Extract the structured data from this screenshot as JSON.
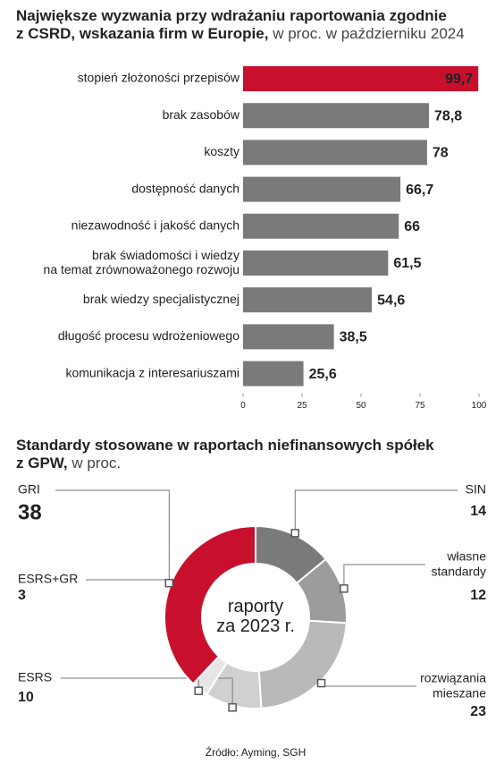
{
  "chart_data": [
    {
      "type": "bar",
      "title": "Największe wyzwania przy wdrażaniu raportowania zgodnie\nz CSRD, wskazania firm w Europie,",
      "subtitle": "w proc. w październiku 2024",
      "categories": [
        "stopień złożoności przepisów",
        "brak zasobów",
        "koszty",
        "dostępność danych",
        "niezawodność i jakość danych",
        "brak świadomości i wiedzy\nna temat zrównoważonego rozwoju",
        "brak wiedzy specjalistycznej",
        "długość procesu wdrożeniowego",
        "komunikacja z interesariuszami"
      ],
      "values": [
        99.7,
        78.8,
        78,
        66.7,
        66,
        61.5,
        54.6,
        38.5,
        25.6
      ],
      "value_labels": [
        "99,7",
        "78,8",
        "78",
        "66,7",
        "66",
        "61,5",
        "54,6",
        "38,5",
        "25,6"
      ],
      "colors": [
        "#c8102e",
        "#7a7a7a",
        "#7a7a7a",
        "#7a7a7a",
        "#7a7a7a",
        "#7a7a7a",
        "#7a7a7a",
        "#7a7a7a",
        "#7a7a7a"
      ],
      "xlim": [
        0,
        100
      ],
      "xticks": [
        0,
        25,
        50,
        75,
        100
      ]
    },
    {
      "type": "pie",
      "title": "Standardy stosowane w raportach niefinansowych spółek\nz GPW,",
      "subtitle": "w proc.",
      "center_label": "raporty\nza 2023 r.",
      "categories": [
        "SIN",
        "własne\nstandardy",
        "rozwiązania\nmieszane",
        "ESRS",
        "ESRS+GR",
        "GRI"
      ],
      "values": [
        14,
        12,
        23,
        10,
        3,
        38
      ],
      "colors": [
        "#7a7a7a",
        "#9c9c9c",
        "#b9b9b9",
        "#d0d0d0",
        "#e6e6e6",
        "#c8102e"
      ]
    }
  ],
  "source": "Źródło: Ayming, SGH"
}
